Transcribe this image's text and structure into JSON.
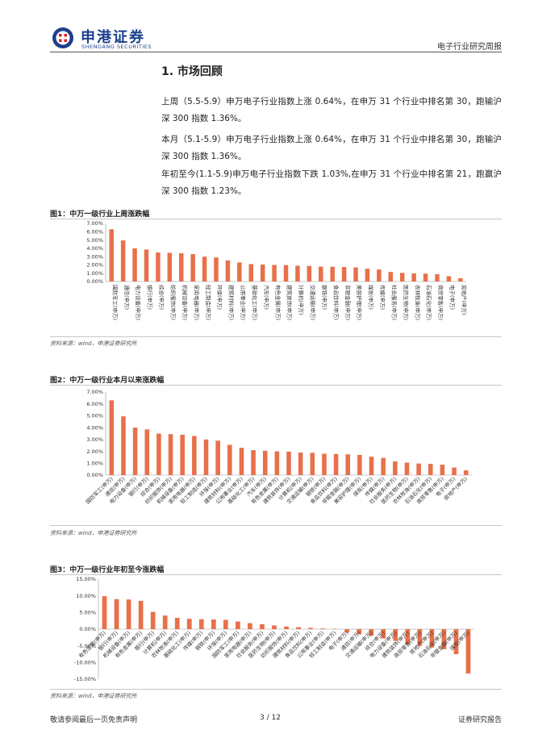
{
  "header": {
    "logo_cn": "申港证券",
    "logo_en": "SHENGANG SECURITIES",
    "report_type": "电子行业研究周报"
  },
  "section": {
    "title": "1. 市场回顾",
    "p1": "上周（5.5-5.9）申万电子行业指数上涨 0.64%，在申万 31 个行业中排名第 30，跑输沪深 300 指数 1.36%。",
    "p2": "本月（5.1-5.9）申万电子行业指数上涨 0.64%，在申万 31 个行业中排名第 30，跑输沪深 300 指数 1.36%。",
    "p3": "年初至今(1.1-5.9)申万电子行业指数下跌 1.03%,在申万 31 个行业中排名第 21，跑赢沪深 300 指数 1.23%。"
  },
  "figures": [
    {
      "title": "图1：中万一级行业上周涨跌幅",
      "source": "资料来源：wind，申港证券研究所"
    },
    {
      "title": "图2：中万一级行业本月以来涨跌幅",
      "source": "资料来源：wind，申港证券研究所"
    },
    {
      "title": "图3：中万一级行业年初至今涨跌幅",
      "source": "资料来源：wind，申港证券研究所"
    }
  ],
  "footer": {
    "left": "敬请参阅最后一页免责声明",
    "page": "3 / 12",
    "right": "证券研究报告"
  },
  "colors": {
    "bar": "#E8704A",
    "brand": "#1C3F8C",
    "brand_red": "#D9202A"
  },
  "chart_data": [
    {
      "type": "bar",
      "title": "图1：中万一级行业上周涨跌幅",
      "ylim": [
        0,
        7
      ],
      "yticks": [
        "7.00%",
        "6.00%",
        "5.00%",
        "4.00%",
        "3.00%",
        "2.00%",
        "1.00%",
        "0.00%"
      ],
      "categories": [
        "国防军工(申万)",
        "通信(申万)",
        "电力设备(申万)",
        "银行(申万)",
        "综合(申万)",
        "纺织服饰(申万)",
        "机械设备(申万)",
        "家用电器(申万)",
        "轻工制造(申万)",
        "环保(申万)",
        "建筑材料(申万)",
        "公用事业(申万)",
        "基础化工(申万)",
        "汽车(申万)",
        "有色金属(申万)",
        "建筑装饰(申万)",
        "计算机(申万)",
        "交通运输(申万)",
        "钢铁(申万)",
        "食品饮料(申万)",
        "非银金融(申万)",
        "美容护理(申万)",
        "煤炭(申万)",
        "传媒(申万)",
        "社会服务(申万)",
        "医药生物(申万)",
        "农林牧渔(申万)",
        "石油石化(申万)",
        "商贸零售(申万)",
        "电子(申万)",
        "房地产(申万)"
      ],
      "values": [
        6.3,
        4.95,
        4.0,
        3.85,
        3.5,
        3.45,
        3.4,
        3.3,
        3.0,
        2.9,
        2.55,
        2.3,
        2.1,
        2.05,
        2.0,
        1.98,
        1.9,
        1.88,
        1.8,
        1.78,
        1.75,
        1.7,
        1.55,
        1.45,
        1.15,
        1.05,
        0.98,
        0.95,
        0.88,
        0.64,
        0.4
      ]
    },
    {
      "type": "bar",
      "title": "图2：中万一级行业本月以来涨跌幅",
      "ylim": [
        0,
        7
      ],
      "yticks": [
        "7.00%",
        "6.00%",
        "5.00%",
        "4.00%",
        "3.00%",
        "2.00%",
        "1.00%",
        "0.00%"
      ],
      "categories": [
        "国防军工(申万)",
        "通信(申万)",
        "电力设备(申万)",
        "银行(申万)",
        "综合(申万)",
        "纺织服饰(申万)",
        "机械设备(申万)",
        "家用电器(申万)",
        "轻工制造(申万)",
        "环保(申万)",
        "建筑材料(申万)",
        "公用事业(申万)",
        "基础化工(申万)",
        "汽车(申万)",
        "有色金属(申万)",
        "建筑装饰(申万)",
        "计算机(申万)",
        "交通运输(申万)",
        "钢铁(申万)",
        "食品饮料(申万)",
        "非银金融(申万)",
        "美容护理(申万)",
        "煤炭(申万)",
        "传媒(申万)",
        "社会服务(申万)",
        "医药生物(申万)",
        "农林牧渔(申万)",
        "石油石化(申万)",
        "商贸零售(申万)",
        "电子(申万)",
        "房地产(申万)"
      ],
      "values": [
        6.3,
        4.95,
        4.0,
        3.85,
        3.5,
        3.45,
        3.4,
        3.3,
        3.0,
        2.9,
        2.55,
        2.3,
        2.1,
        2.05,
        2.0,
        1.98,
        1.9,
        1.88,
        1.8,
        1.78,
        1.75,
        1.7,
        1.55,
        1.45,
        1.15,
        1.05,
        0.98,
        0.95,
        0.88,
        0.64,
        0.4
      ]
    },
    {
      "type": "bar",
      "title": "图3：中万一级行业年初至今涨跌幅",
      "ylim": [
        -15,
        15
      ],
      "yticks": [
        "15.00%",
        "10.00%",
        "5.00%",
        "0.00%",
        "-5.00%",
        "-10.00%",
        "-15.00%"
      ],
      "categories": [
        "有色金属(申万)",
        "银行(申万)",
        "机械设备(申万)",
        "有色金属(申万)",
        "银行(申万)",
        "计算机(申万)",
        "农林牧渔(申万)",
        "基础化工(申万)",
        "传媒(申万)",
        "钢铁(申万)",
        "环保(申万)",
        "国防军工(申万)",
        "家用电器(申万)",
        "社会服务(申万)",
        "医药生物(申万)",
        "纺织服饰(申万)",
        "建筑材料(申万)",
        "食品饮料(申万)",
        "公用事业(申万)",
        "轻工制造(申万)",
        "电子(申万)",
        "通信(申万)",
        "交通运输(申万)",
        "综合(申万)",
        "电力设备(申万)",
        "建筑装饰(申万)",
        "商贸零售(申万)",
        "房地产(申万)",
        "石油石化(申万)",
        "非银金融(申万)",
        "煤炭(申万)"
      ],
      "values": [
        9.9,
        9.0,
        8.9,
        8.5,
        5.2,
        4.1,
        3.4,
        3.1,
        3.0,
        2.9,
        2.8,
        2.3,
        1.8,
        1.5,
        1.1,
        0.8,
        0.6,
        0.4,
        0.2,
        0.1,
        -1.03,
        -1.5,
        -2.0,
        -2.8,
        -3.5,
        -4.5,
        -5.0,
        -5.5,
        -6.0,
        -7.5,
        -13.3
      ]
    }
  ]
}
